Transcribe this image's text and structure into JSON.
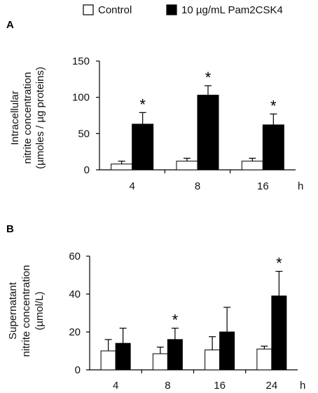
{
  "legend": [
    {
      "label": "Control",
      "fill": "#ffffff"
    },
    {
      "label": "10 µg/mL Pam2CSK4",
      "fill": "#000000"
    }
  ],
  "colors": {
    "control": "#ffffff",
    "treated": "#000000",
    "edge": "#000000"
  },
  "chart_data": [
    {
      "panel": "A",
      "type": "bar",
      "ylabel": [
        "Intracellular",
        "nitrite concentration",
        "(µmoles / µg proteins)"
      ],
      "unit_label": "h",
      "categories": [
        "4",
        "8",
        "16"
      ],
      "ylim": [
        0,
        150
      ],
      "yticks": [
        "0",
        "50",
        "100",
        "150"
      ],
      "series": [
        {
          "name": "Control",
          "values": [
            8,
            12,
            12
          ],
          "errors": [
            4,
            4,
            4
          ]
        },
        {
          "name": "10 µg/mL Pam2CSK4",
          "values": [
            63,
            103,
            62
          ],
          "errors": [
            16,
            13,
            15
          ]
        }
      ],
      "significance": [
        "*",
        "*",
        "*"
      ]
    },
    {
      "panel": "B",
      "type": "bar",
      "ylabel": [
        "Supernatant",
        "nitrite concentration",
        "(µmol/L)"
      ],
      "unit_label": "h",
      "categories": [
        "4",
        "8",
        "16",
        "24"
      ],
      "ylim": [
        0,
        60
      ],
      "yticks": [
        "0",
        "20",
        "40",
        "60"
      ],
      "series": [
        {
          "name": "Control",
          "values": [
            10,
            8.5,
            10.5,
            11
          ],
          "errors": [
            6,
            3.5,
            7,
            1.5
          ]
        },
        {
          "name": "10 µg/mL Pam2CSK4",
          "values": [
            14,
            16,
            20,
            39
          ],
          "errors": [
            8,
            6,
            13,
            13
          ]
        }
      ],
      "significance": [
        "",
        "*",
        "",
        "*"
      ]
    }
  ]
}
